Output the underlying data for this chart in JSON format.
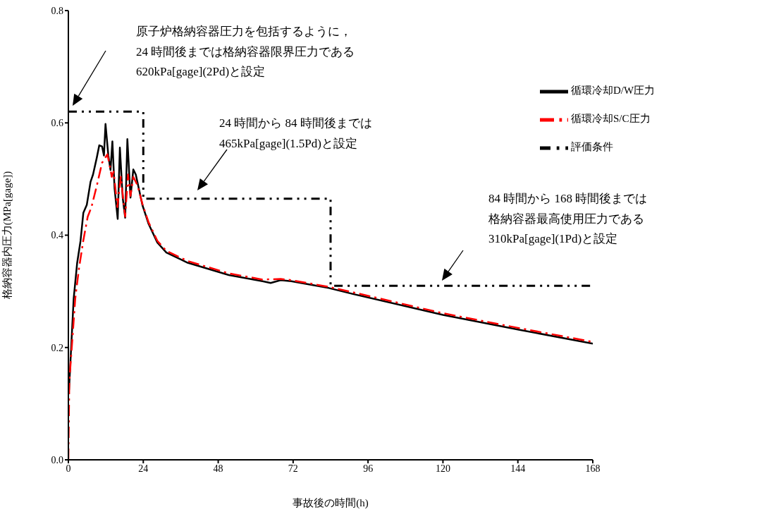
{
  "chart_data": {
    "type": "line",
    "xlabel": "事故後の時間(h)",
    "ylabel": "格納容器内圧力(MPa[gage])",
    "xlim": [
      0,
      168
    ],
    "xticks": [
      0,
      24,
      48,
      72,
      96,
      120,
      144,
      168
    ],
    "ylim": [
      0,
      0.8
    ],
    "yticks": [
      {
        "value": 0,
        "label": "0.0"
      },
      {
        "value": 0.2,
        "label": "0.2"
      },
      {
        "value": 0.4,
        "label": "0.4"
      },
      {
        "value": 0.6,
        "label": "0.6"
      },
      {
        "value": 0.8,
        "label": "0.8"
      }
    ],
    "legend": "top right",
    "marker": "none",
    "series": [
      {
        "name": "循環冷却D/W圧力",
        "color": "#000000",
        "line_style": "solid",
        "x": [
          0.2,
          0.8,
          1.7,
          2.8,
          3.9,
          4.8,
          5.9,
          7.1,
          7.9,
          9.1,
          9.9,
          10.8,
          11.4,
          11.9,
          12.8,
          13.5,
          14.1,
          14.8,
          15.8,
          16.5,
          17.4,
          18.2,
          18.9,
          19.9,
          20.8,
          21.6,
          23.7,
          25.7,
          28.5,
          31.4,
          38.2,
          51.4,
          62.2,
          64.8,
          68,
          71.4,
          83.4,
          91.4,
          120,
          144,
          168
        ],
        "values": [
          0.124,
          0.19,
          0.287,
          0.35,
          0.39,
          0.44,
          0.454,
          0.495,
          0.508,
          0.538,
          0.56,
          0.558,
          0.542,
          0.598,
          0.542,
          0.516,
          0.567,
          0.483,
          0.429,
          0.556,
          0.467,
          0.431,
          0.571,
          0.467,
          0.517,
          0.508,
          0.454,
          0.42,
          0.387,
          0.369,
          0.351,
          0.329,
          0.318,
          0.315,
          0.32,
          0.318,
          0.306,
          0.295,
          0.258,
          0.232,
          0.207
        ]
      },
      {
        "name": "循環冷却S/C圧力",
        "color": "#ff0000",
        "line_style": "dashed",
        "x": [
          0,
          0.3,
          1.4,
          2.2,
          3.4,
          4.8,
          6.2,
          7.4,
          9.1,
          10.8,
          12.5,
          13.4,
          13.9,
          14.5,
          15.7,
          16.8,
          18.2,
          19.1,
          19.9,
          20.8,
          22.2,
          23.7,
          25.7,
          28.5,
          31.4,
          38.2,
          51.4,
          62.2,
          68,
          71.4,
          83.4,
          91.4,
          120,
          144,
          168
        ],
        "values": [
          0,
          0.14,
          0.224,
          0.287,
          0.341,
          0.391,
          0.433,
          0.45,
          0.488,
          0.529,
          0.544,
          0.52,
          0.504,
          0.513,
          0.45,
          0.504,
          0.433,
          0.508,
          0.47,
          0.504,
          0.488,
          0.456,
          0.423,
          0.39,
          0.372,
          0.354,
          0.332,
          0.321,
          0.322,
          0.32,
          0.308,
          0.298,
          0.261,
          0.235,
          0.21
        ]
      },
      {
        "name": "評価条件",
        "color": "#000000",
        "line_style": "dotted",
        "x": [
          0,
          24,
          24,
          84,
          84,
          168
        ],
        "values": [
          0.62,
          0.62,
          0.465,
          0.465,
          0.31,
          0.31
        ]
      }
    ],
    "annotations": [
      "原子炉格納容器圧力を包括するように，",
      "24 時間後までは格納容器限界圧力である",
      "620kPa[gage](2Pd)と設定",
      "24 時間から 84 時間後までは",
      "465kPa[gage](1.5Pd)と設定",
      "84 時間から 168 時間後までは",
      "格納容器最高使用圧力である",
      "310kPa[gage](1Pd)と設定"
    ]
  }
}
